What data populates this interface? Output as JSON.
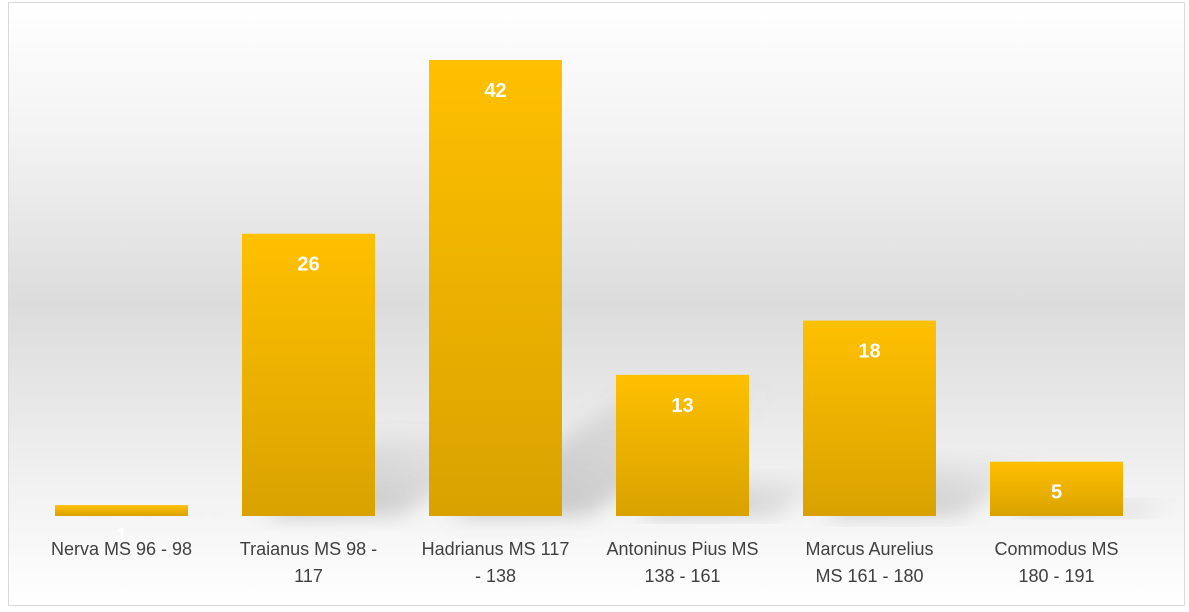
{
  "chart_data": {
    "type": "bar",
    "title": "",
    "xlabel": "",
    "ylabel": "",
    "categories": [
      [
        "Nerva   MS 96 - 98"
      ],
      [
        "Traianus  MS 98 -",
        "117"
      ],
      [
        "Hadrianus MS 117",
        "- 138"
      ],
      [
        "Antoninus Pius MS",
        "138 - 161"
      ],
      [
        "Marcus Aurelius",
        "MS 161 - 180"
      ],
      [
        "Commodus MS",
        "180 - 191"
      ]
    ],
    "values": [
      1,
      26,
      42,
      13,
      18,
      5
    ],
    "data_labels": [
      "1",
      "26",
      "42",
      "13",
      "18",
      "5"
    ],
    "ylim": [
      0,
      42
    ],
    "grid": false,
    "legend": "none",
    "colors": {
      "bar_top": "#ffc000",
      "bar_bottom": "#d9a200",
      "shadow": "#7f7f7f",
      "data_label": "#ffffff",
      "axis_text": "#404040"
    }
  }
}
